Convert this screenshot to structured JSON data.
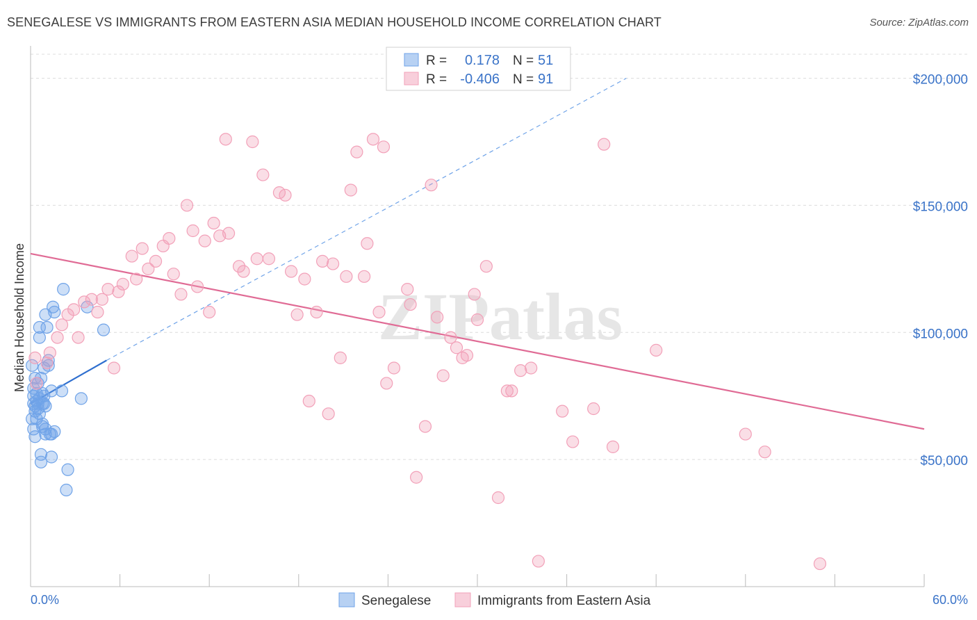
{
  "chart_data": {
    "type": "scatter",
    "title": "SENEGALESE VS IMMIGRANTS FROM EASTERN ASIA MEDIAN HOUSEHOLD INCOME CORRELATION CHART",
    "source": "Source: ZipAtlas.com",
    "xlabel": "",
    "ylabel": "Median Household Income",
    "xlim": [
      0,
      60
    ],
    "ylim": [
      0,
      210000
    ],
    "x_tick_labels": [
      "0.0%",
      "60.0%"
    ],
    "y_ticks": [
      50000,
      100000,
      150000,
      200000
    ],
    "y_tick_labels": [
      "$50,000",
      "$100,000",
      "$150,000",
      "$200,000"
    ],
    "grid": true,
    "watermark": "ZIPatlas",
    "legend_box": {
      "rows": [
        {
          "r_label": "R =",
          "r_value": "0.178",
          "n_label": "N =",
          "n_value": "51"
        },
        {
          "r_label": "R =",
          "r_value": "-0.406",
          "n_label": "N =",
          "n_value": "91"
        }
      ]
    },
    "series": [
      {
        "name": "Senegalese",
        "color": "#6fa3e8",
        "line_color": "#2f6fcf",
        "trend": {
          "x0": 0,
          "y0": 72000,
          "x1": 5.1,
          "y1": 89000,
          "x_dash_end": 40,
          "y_dash_end": 200000
        },
        "points": [
          [
            0.1,
            87000
          ],
          [
            0.2,
            78000
          ],
          [
            0.2,
            75000
          ],
          [
            0.3,
            71000
          ],
          [
            0.3,
            69000
          ],
          [
            0.3,
            82000
          ],
          [
            0.4,
            73000
          ],
          [
            0.4,
            76000
          ],
          [
            0.5,
            80000
          ],
          [
            0.5,
            72000
          ],
          [
            0.5,
            70000
          ],
          [
            0.6,
            74000
          ],
          [
            0.6,
            68000
          ],
          [
            0.6,
            102000
          ],
          [
            0.6,
            98000
          ],
          [
            0.7,
            82000
          ],
          [
            0.7,
            52000
          ],
          [
            0.7,
            49000
          ],
          [
            0.8,
            63000
          ],
          [
            0.8,
            64000
          ],
          [
            0.8,
            72000
          ],
          [
            0.8,
            76000
          ],
          [
            0.9,
            75000
          ],
          [
            0.9,
            86000
          ],
          [
            0.9,
            72000
          ],
          [
            1.0,
            62000
          ],
          [
            1.0,
            60000
          ],
          [
            1.0,
            71000
          ],
          [
            0.3,
            59000
          ],
          [
            0.2,
            62000
          ],
          [
            0.4,
            66000
          ],
          [
            0.2,
            72000
          ],
          [
            1.0,
            107000
          ],
          [
            1.1,
            102000
          ],
          [
            1.2,
            87000
          ],
          [
            1.2,
            89000
          ],
          [
            1.3,
            60000
          ],
          [
            1.4,
            60000
          ],
          [
            1.4,
            77000
          ],
          [
            1.4,
            51000
          ],
          [
            1.5,
            110000
          ],
          [
            1.6,
            108000
          ],
          [
            1.6,
            61000
          ],
          [
            2.1,
            77000
          ],
          [
            2.2,
            117000
          ],
          [
            2.5,
            46000
          ],
          [
            2.4,
            38000
          ],
          [
            3.4,
            74000
          ],
          [
            3.8,
            110000
          ],
          [
            4.9,
            101000
          ],
          [
            0.1,
            66000
          ]
        ]
      },
      {
        "name": "Immigrants from Eastern Asia",
        "color": "#f2a0b8",
        "line_color": "#e06b95",
        "trend": {
          "x0": 0,
          "y0": 131000,
          "x1": 60,
          "y1": 62000
        },
        "points": [
          [
            0.3,
            90000
          ],
          [
            0.4,
            80000
          ],
          [
            1.1,
            88000
          ],
          [
            1.3,
            92000
          ],
          [
            1.8,
            98000
          ],
          [
            2.1,
            103000
          ],
          [
            2.5,
            107000
          ],
          [
            2.9,
            109000
          ],
          [
            3.2,
            98000
          ],
          [
            3.6,
            112000
          ],
          [
            4.1,
            113000
          ],
          [
            4.5,
            108000
          ],
          [
            4.8,
            113000
          ],
          [
            5.2,
            117000
          ],
          [
            5.6,
            86000
          ],
          [
            5.9,
            116000
          ],
          [
            6.2,
            119000
          ],
          [
            6.8,
            130000
          ],
          [
            7.1,
            121000
          ],
          [
            7.5,
            133000
          ],
          [
            7.9,
            125000
          ],
          [
            8.4,
            128000
          ],
          [
            8.9,
            134000
          ],
          [
            9.3,
            137000
          ],
          [
            9.6,
            123000
          ],
          [
            10.1,
            115000
          ],
          [
            10.5,
            150000
          ],
          [
            10.9,
            140000
          ],
          [
            11.2,
            118000
          ],
          [
            11.7,
            136000
          ],
          [
            12.0,
            108000
          ],
          [
            12.3,
            143000
          ],
          [
            12.7,
            138000
          ],
          [
            13.3,
            139000
          ],
          [
            13.1,
            176000
          ],
          [
            14.0,
            126000
          ],
          [
            14.3,
            124000
          ],
          [
            14.9,
            175000
          ],
          [
            15.2,
            129000
          ],
          [
            15.6,
            162000
          ],
          [
            16.0,
            129000
          ],
          [
            16.7,
            155000
          ],
          [
            17.1,
            154000
          ],
          [
            17.5,
            124000
          ],
          [
            17.9,
            107000
          ],
          [
            18.4,
            121000
          ],
          [
            18.7,
            73000
          ],
          [
            19.2,
            108000
          ],
          [
            19.6,
            128000
          ],
          [
            20.0,
            68000
          ],
          [
            20.3,
            127000
          ],
          [
            20.8,
            90000
          ],
          [
            21.2,
            122000
          ],
          [
            21.5,
            156000
          ],
          [
            21.9,
            171000
          ],
          [
            22.4,
            122000
          ],
          [
            22.6,
            135000
          ],
          [
            23.0,
            176000
          ],
          [
            23.4,
            108000
          ],
          [
            23.7,
            173000
          ],
          [
            23.9,
            80000
          ],
          [
            24.4,
            86000
          ],
          [
            25.3,
            117000
          ],
          [
            25.5,
            111000
          ],
          [
            25.9,
            43000
          ],
          [
            26.5,
            63000
          ],
          [
            26.9,
            158000
          ],
          [
            27.3,
            106000
          ],
          [
            27.7,
            83000
          ],
          [
            28.2,
            98000
          ],
          [
            28.6,
            94000
          ],
          [
            29.0,
            90000
          ],
          [
            29.3,
            91000
          ],
          [
            29.8,
            115000
          ],
          [
            30.0,
            105000
          ],
          [
            30.6,
            126000
          ],
          [
            31.4,
            35000
          ],
          [
            32.0,
            77000
          ],
          [
            32.3,
            77000
          ],
          [
            32.9,
            85000
          ],
          [
            33.6,
            86000
          ],
          [
            34.1,
            10000
          ],
          [
            35.7,
            69000
          ],
          [
            36.4,
            57000
          ],
          [
            37.8,
            70000
          ],
          [
            38.5,
            174000
          ],
          [
            39.1,
            55000
          ],
          [
            42.0,
            93000
          ],
          [
            48.0,
            60000
          ],
          [
            49.3,
            53000
          ],
          [
            53.0,
            9000
          ]
        ]
      }
    ]
  }
}
